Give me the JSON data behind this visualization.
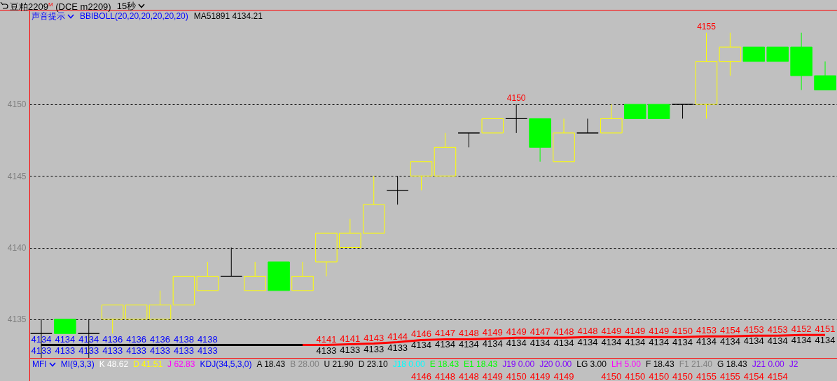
{
  "chart_data": [
    {
      "type": "candlestick",
      "title": "豆粕2209$^{M}$ (DCE m2209)",
      "subtitle": "15秒",
      "annotations": [
        "声音提示",
        "BBIBOLL(20,20,20,20,20,20)",
        {
          "text": "4150",
          "y": 4150
        },
        {
          "text": "4155",
          "y": 4155
        }
      ],
      "categories": [
        null,
        null,
        null,
        null,
        null,
        null,
        null,
        null,
        null,
        null,
        null,
        null,
        null,
        null,
        null,
        null,
        null,
        null,
        null,
        null,
        null,
        null,
        null,
        null,
        null,
        null,
        null,
        null,
        null,
        null,
        null,
        null,
        null,
        null
      ],
      "ohlc": [
        [
          4134,
          4135,
          4132.3,
          4134
        ],
        [
          4135,
          4135,
          4134,
          4134
        ],
        [
          4134,
          4135,
          4132.3,
          4134
        ],
        [
          4135,
          4136,
          4134,
          4136
        ],
        [
          4135,
          4136,
          4135,
          4136
        ],
        [
          4135,
          4137,
          4135,
          4136
        ],
        [
          4136,
          4138,
          4136,
          4138
        ],
        [
          4137,
          4139,
          4137,
          4138
        ],
        [
          4138,
          4140,
          4138,
          4138
        ],
        [
          4137,
          4139,
          4137,
          4138
        ],
        [
          4139,
          4139,
          4137,
          4137
        ],
        [
          4137,
          4139,
          4137,
          4138
        ],
        [
          4139,
          4141,
          4138,
          4141
        ],
        [
          4140,
          4142,
          4140,
          4141
        ],
        [
          4141,
          4145,
          4141,
          4143
        ],
        [
          4144,
          4145,
          4143,
          4144
        ],
        [
          4145,
          4146,
          4144,
          4146
        ],
        [
          4145,
          4148,
          4145,
          4147
        ],
        [
          4148,
          4148,
          4147,
          4148
        ],
        [
          4148,
          4149,
          4148,
          4149
        ],
        [
          4149,
          4150,
          4148,
          4149
        ],
        [
          4149,
          4149,
          4146,
          4147
        ],
        [
          4146,
          4149,
          4146,
          4148
        ],
        [
          4148,
          4149,
          4148,
          4148
        ],
        [
          4148,
          4150,
          4148,
          4149
        ],
        [
          4150,
          4150,
          4149,
          4149
        ],
        [
          4150,
          4150,
          4149,
          4149
        ],
        [
          4150,
          4150,
          4149,
          4150
        ],
        [
          4150,
          4155,
          4149,
          4153
        ],
        [
          4153,
          4155,
          4152,
          4154
        ],
        [
          4154,
          4154,
          4153,
          4153
        ],
        [
          4154,
          4154,
          4153,
          4153
        ],
        [
          4154,
          4155,
          4151,
          4152
        ],
        [
          4152,
          4153,
          4151,
          4151
        ]
      ],
      "colors": [
        "#000000",
        "#00ff00",
        "#000000",
        "#ffff00",
        "#ffff00",
        "#ffff00",
        "#ffff00",
        "#ffff00",
        "#000000",
        "#ffff00",
        "#00ff00",
        "#ffff00",
        "#ffff00",
        "#ffff00",
        "#ffff00",
        "#000000",
        "#ffff00",
        "#ffff00",
        "#000000",
        "#ffff00",
        "#000000",
        "#00ff00",
        "#ffff00",
        "#000000",
        "#ffff00",
        "#00ff00",
        "#00ff00",
        "#000000",
        "#ffff00",
        "#ffff00",
        "#00ff00",
        "#00ff00",
        "#00ff00",
        "#00ff00"
      ],
      "value_labels": [
        "4134",
        "4134",
        "4134",
        "4136",
        "4136",
        "4136",
        "4138",
        "4138",
        null,
        null,
        null,
        null,
        "4141",
        "4141",
        "4143",
        "4144",
        "4146",
        "4147",
        "4148",
        "4149",
        "4149",
        "4147",
        "4148",
        "4148",
        "4149",
        "4149",
        "4149",
        "4150",
        "4153",
        "4154",
        "4153",
        "4153",
        "4152",
        "4151"
      ],
      "series": [
        {
          "type": "line",
          "name": "MA51891 4134.21",
          "color": "#000000",
          "values": [
            4133.2,
            4133.2,
            4133.2,
            4133.2,
            4133.2,
            4133.2,
            4133.2,
            4133.2,
            4133.2,
            4133.2,
            4133.2,
            4133.2,
            null,
            null,
            null,
            null,
            null,
            null,
            null,
            null,
            null,
            null,
            null,
            null,
            null,
            null,
            null,
            null,
            null,
            null,
            null,
            null,
            null,
            null
          ],
          "value_labels": [
            "4133",
            "4133",
            "4133",
            "4133",
            "4133",
            "4133",
            "4133",
            "4133",
            null,
            null,
            null,
            null,
            null,
            null,
            null,
            null,
            null,
            null,
            null,
            null,
            null,
            null,
            null,
            null,
            null,
            null,
            null,
            null,
            null,
            null,
            null,
            null,
            null,
            null
          ]
        },
        {
          "type": "line",
          "color": "#ff0000",
          "values": [
            null,
            null,
            null,
            null,
            null,
            null,
            null,
            null,
            null,
            null,
            null,
            4133.2,
            4133.2,
            4133.25,
            4133.3,
            4133.4,
            4133.55,
            4133.6,
            4133.6,
            4133.65,
            4133.7,
            4133.7,
            4133.7,
            4133.75,
            4133.75,
            4133.75,
            4133.75,
            4133.75,
            4133.8,
            4133.8,
            4133.85,
            4133.85,
            4133.9,
            4133.9
          ],
          "value_labels": [
            null,
            null,
            null,
            null,
            null,
            null,
            null,
            null,
            null,
            null,
            null,
            null,
            "4133",
            "4133",
            "4133",
            "4133",
            "4134",
            "4134",
            "4134",
            "4134",
            "4134",
            "4134",
            "4134",
            "4134",
            "4134",
            "4134",
            "4134",
            "4134",
            "4134",
            "4134",
            "4134",
            "4134",
            "4134",
            "4134"
          ]
        }
      ],
      "ylim": [
        4132.3,
        4156.55
      ],
      "yticks": [
        4135,
        4140,
        4145,
        4150
      ],
      "grid": "y",
      "legend": "top left"
    },
    {
      "type": "other",
      "title": "MFI",
      "color": "#ff0000",
      "annotations": [
        "MI(9,3,3)",
        "K 48.62",
        "D 41.51",
        "J 62.83",
        "KDJ(34,5,3,0)",
        "A 18.43",
        "B 28.00",
        "U 21.90",
        "D 23.10",
        "J18 0.00",
        "E 18.43",
        "E1 18.43",
        "J19 0.00",
        "J20 0.00",
        "LG 3.00",
        "LH 5.00",
        "F 18.43",
        "F1 21.40",
        "G 18.43",
        "J21 0.00",
        "J2"
      ],
      "categories": [
        null,
        null,
        null,
        null,
        null,
        null,
        null,
        null,
        null,
        null,
        null,
        null,
        null,
        null,
        null,
        null,
        null,
        null,
        null,
        null,
        null,
        null,
        null,
        null,
        null,
        null,
        null,
        null,
        null,
        null,
        null,
        null,
        null,
        null
      ],
      "values": [
        null,
        null,
        null,
        null,
        null,
        null,
        null,
        null,
        null,
        null,
        null,
        null,
        null,
        null,
        null,
        null,
        4146,
        4148,
        4148,
        4149,
        4150,
        4149,
        4149,
        null,
        4150,
        4150,
        4150,
        4150,
        4155,
        4155,
        4154,
        4154,
        null,
        null
      ],
      "data_labels": true
    }
  ]
}
